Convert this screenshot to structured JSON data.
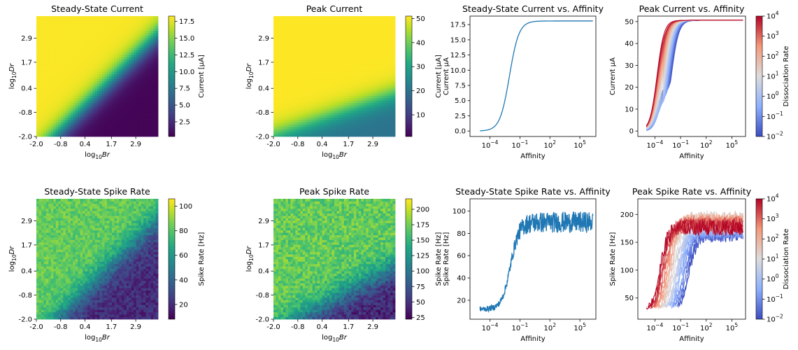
{
  "chart_data": [
    {
      "type": "heatmap",
      "title": "Steady-State Current",
      "xlabel": "log10 Br",
      "ylabel": "log10 Dr",
      "x_ticks": [
        "-2.0",
        "-0.8",
        "0.4",
        "1.7",
        "2.9"
      ],
      "y_ticks": [
        "-2.0",
        "-0.8",
        "0.4",
        "1.7",
        "2.9"
      ],
      "xlim": [
        -2.0,
        4.0
      ],
      "ylim": [
        -2.0,
        4.0
      ],
      "grid": [
        50,
        50
      ],
      "colormap": "viridis",
      "colorbar": {
        "label": "Current [μA]",
        "range": [
          0.3,
          18.3
        ],
        "ticks": [
          "2.5",
          "5.0",
          "7.5",
          "10.0",
          "12.5",
          "15.0",
          "17.5"
        ]
      },
      "description_values": "max ~18 (yellow) upper-left of diagonal Dr > Br; falls to ~0.5 (purple) lower-right"
    },
    {
      "type": "heatmap",
      "title": "Peak Current",
      "xlabel": "log10 Br",
      "ylabel": "log10 Dr",
      "x_ticks": [
        "-2.0",
        "-0.8",
        "0.4",
        "1.7",
        "2.9"
      ],
      "y_ticks": [
        "-2.0",
        "-0.8",
        "0.4",
        "1.7",
        "2.9"
      ],
      "xlim": [
        -2.0,
        4.0
      ],
      "ylim": [
        -2.0,
        4.0
      ],
      "grid": [
        50,
        50
      ],
      "colormap": "viridis",
      "colorbar": {
        "label": "Current [μA]",
        "label2": "Current μA",
        "range": [
          1,
          51
        ],
        "ticks": [
          "10",
          "20",
          "30",
          "40",
          "50"
        ]
      }
    },
    {
      "type": "line",
      "title": "Steady-State Current vs. Affinity",
      "xlabel": "Affinity",
      "ylabel": "",
      "xscale": "log",
      "xlim": [
        1e-06,
        4000000
      ],
      "ylim": [
        -0.9,
        18.9
      ],
      "x_ticks": [
        0.0001,
        0.1,
        100,
        100000
      ],
      "y_ticks": [
        "0.0",
        "2.5",
        "5.0",
        "7.5",
        "10.0",
        "12.5",
        "15.0",
        "17.5"
      ],
      "y_tick_values": [
        0,
        2.5,
        5,
        7.5,
        10,
        12.5,
        15,
        17.5
      ],
      "series": [
        {
          "color": "#1f77b4",
          "x": [
            1e-05,
            0.0001,
            0.0003,
            0.001,
            0.003,
            0.01,
            0.03,
            0.1,
            0.3,
            1,
            10,
            100,
            1000,
            100000,
            1000000
          ],
          "y": [
            0.0,
            0.1,
            0.5,
            1.6,
            4.4,
            9.5,
            14.6,
            17.1,
            17.9,
            18.1,
            18.1,
            18.1,
            18.1,
            18.1,
            18.1
          ]
        }
      ]
    },
    {
      "type": "line",
      "title": "Peak Current vs. Affinity",
      "xlabel": "Affinity",
      "ylabel": "Current μA",
      "xscale": "log",
      "xlim": [
        1e-06,
        4000000
      ],
      "ylim": [
        -2.5,
        52.5
      ],
      "x_ticks": [
        0.0001,
        0.1,
        100,
        100000
      ],
      "y_ticks": [
        "0",
        "10",
        "20",
        "30",
        "40",
        "50"
      ],
      "y_tick_values": [
        0,
        10,
        20,
        30,
        40,
        50
      ],
      "curve_family": "sigmoid rises from ~0 at 1e-5 to 50.5 plateau; higher dissociation rate curves (red) saturate earliest, low dissociation (blue) curves start from plateau ~22 at affinity ~0.3",
      "colorbar": {
        "label": "Dissociation Rate",
        "colormap": "coolwarm",
        "log_range": [
          -2,
          4
        ]
      }
    },
    {
      "type": "heatmap",
      "title": "Steady-State Spike Rate",
      "xlabel": "log10 Br",
      "ylabel": "log10 Dr",
      "x_ticks": [
        "-2.0",
        "-0.8",
        "0.4",
        "1.7",
        "2.9"
      ],
      "y_ticks": [
        "-2.0",
        "-0.8",
        "0.4",
        "1.7",
        "2.9"
      ],
      "xlim": [
        -2.0,
        4.0
      ],
      "ylim": [
        -2.0,
        4.0
      ],
      "grid": [
        50,
        50
      ],
      "colormap": "viridis",
      "colorbar": {
        "label": "Spike Rate [Hz]",
        "range": [
          8,
          106
        ],
        "ticks": [
          "20",
          "40",
          "60",
          "80",
          "100"
        ]
      }
    },
    {
      "type": "heatmap",
      "title": "Peak Spike Rate",
      "xlabel": "log10 Br",
      "ylabel": "log10 Dr",
      "x_ticks": [
        "-2.0",
        "-0.8",
        "0.4",
        "1.7",
        "2.9"
      ],
      "y_ticks": [
        "-2.0",
        "-0.8",
        "0.4",
        "1.7",
        "2.9"
      ],
      "xlim": [
        -2.0,
        4.0
      ],
      "ylim": [
        -2.0,
        4.0
      ],
      "grid": [
        50,
        50
      ],
      "colormap": "viridis",
      "colorbar": {
        "label": "Spike Rate [Hz]",
        "label2": "Spike Rate [Hz]",
        "range": [
          22,
          217
        ],
        "ticks": [
          "25",
          "50",
          "75",
          "100",
          "125",
          "150",
          "175",
          "200"
        ]
      }
    },
    {
      "type": "line",
      "title": "Steady-State Spike Rate vs. Affinity",
      "xlabel": "Affinity",
      "ylabel": "",
      "xscale": "log",
      "xlim": [
        1e-06,
        4000000
      ],
      "ylim": [
        3,
        111
      ],
      "x_ticks": [
        0.0001,
        0.1,
        100,
        100000
      ],
      "y_ticks": [
        "20",
        "40",
        "60",
        "80",
        "100"
      ],
      "y_tick_values": [
        20,
        40,
        60,
        80,
        100
      ],
      "series": [
        {
          "color": "#1f77b4",
          "x": [
            1e-05,
            0.0001,
            0.001,
            0.003,
            0.01,
            0.03,
            0.1,
            0.3,
            1,
            10,
            100,
            1000,
            100000,
            1000000
          ],
          "y": [
            12,
            13,
            15,
            22,
            40,
            62,
            78,
            86,
            89,
            90,
            90,
            90,
            90,
            90
          ]
        }
      ]
    },
    {
      "type": "line",
      "title": "Peak Spike Rate vs. Affinity",
      "xlabel": "Affinity",
      "ylabel": "Spike Rate [Hz]",
      "xscale": "log",
      "xlim": [
        1e-06,
        4000000
      ],
      "ylim": [
        12,
        228
      ],
      "x_ticks": [
        0.0001,
        0.1,
        100,
        100000
      ],
      "y_ticks": [
        "50",
        "100",
        "150",
        "200"
      ],
      "y_tick_values": [
        50,
        100,
        150,
        200
      ],
      "curve_family": "noisy sigmoid families rising from ~30 to ~170-200 plateau; red curves (high dissociation) saturate earliest, blue curves latest",
      "colorbar": {
        "label": "Dissociation Rate",
        "colormap": "coolwarm",
        "log_range": [
          -2,
          4
        ]
      }
    }
  ]
}
